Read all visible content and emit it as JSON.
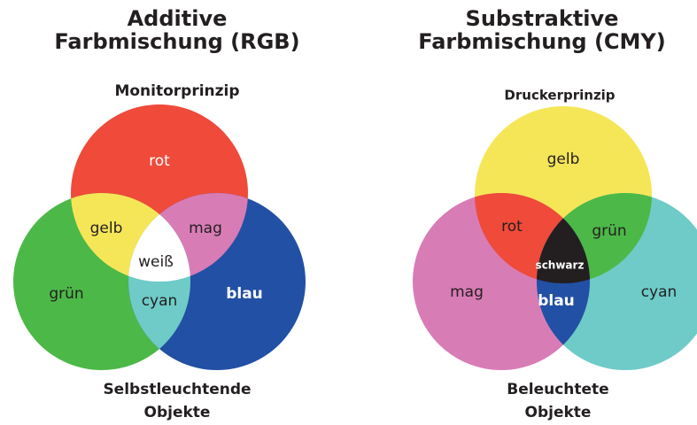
{
  "left": {
    "title": [
      "Additive",
      "Farbmischung (RGB)"
    ],
    "principle": "Monitorprinzip",
    "labels": {
      "rot": "rot",
      "gelb": "gelb",
      "mag": "mag",
      "weiss": "weiß",
      "gruen": "grün",
      "cyan": "cyan",
      "blau": "blau"
    },
    "footer": [
      "Selbstleuchtende",
      "Objekte"
    ]
  },
  "right": {
    "title": [
      "Substraktive",
      "Farbmischung (CMY)"
    ],
    "principle": "Druckerprinzip",
    "labels": {
      "gelb": "gelb",
      "rot": "rot",
      "gruen": "grün",
      "schwarz": "schwarz",
      "mag": "mag",
      "blau": "blau",
      "cyan": "cyan"
    },
    "footer": [
      "Beleuchtete",
      "Objekte"
    ]
  }
}
